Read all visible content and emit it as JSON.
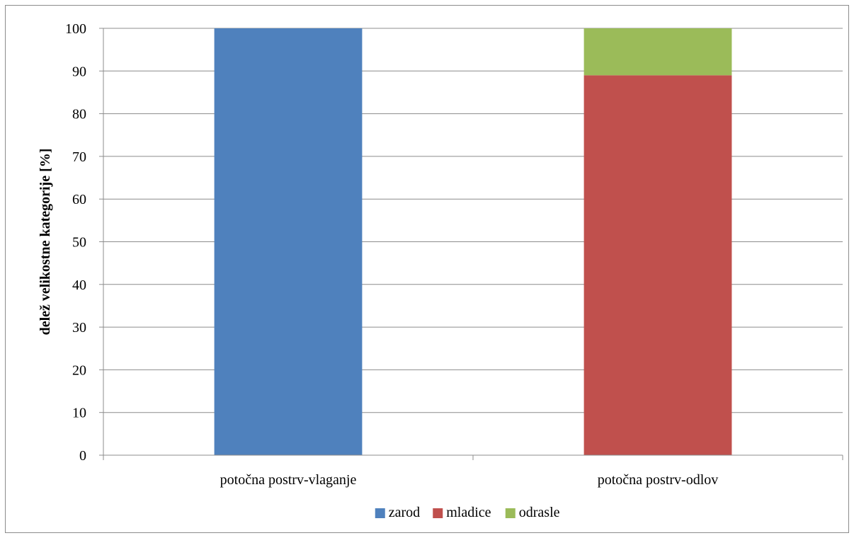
{
  "chart_data": {
    "type": "bar",
    "stacked": true,
    "title": "",
    "xlabel": "",
    "ylabel": "delež velikostne kategorije [%]",
    "ylim": [
      0,
      100
    ],
    "yticks": [
      0,
      10,
      20,
      30,
      40,
      50,
      60,
      70,
      80,
      90,
      100
    ],
    "grid": true,
    "legend_position": "bottom",
    "categories": [
      "potočna postrv-vlaganje",
      "potočna postrv-odlov"
    ],
    "series": [
      {
        "name": "zarod",
        "color": "#4f81bd",
        "values": [
          100,
          0
        ]
      },
      {
        "name": "mladice",
        "color": "#c0504d",
        "values": [
          0,
          89
        ]
      },
      {
        "name": "odrasle",
        "color": "#9bbb59",
        "values": [
          0,
          11
        ]
      }
    ]
  }
}
